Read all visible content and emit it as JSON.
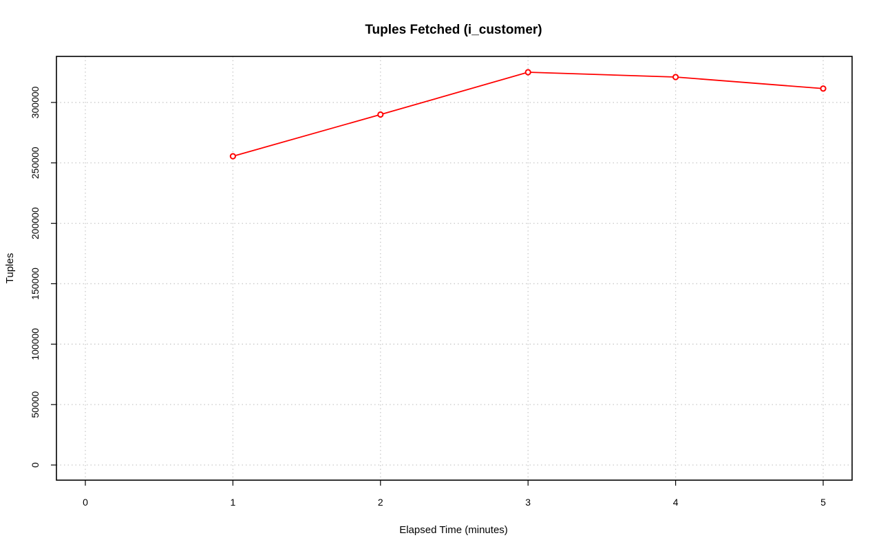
{
  "chart_data": {
    "type": "line",
    "title": "Tuples Fetched (i_customer)",
    "xlabel": "Elapsed Time (minutes)",
    "ylabel": "Tuples",
    "xlim": [
      0,
      5
    ],
    "ylim": [
      0,
      325000
    ],
    "x_ticks": [
      0,
      1,
      2,
      3,
      4,
      5
    ],
    "y_ticks": [
      0,
      50000,
      100000,
      150000,
      200000,
      250000,
      300000
    ],
    "grid": true,
    "series": [
      {
        "color": "#ff0000",
        "x": [
          1,
          2,
          3,
          4,
          5
        ],
        "values": [
          255500,
          290000,
          325000,
          321000,
          311500
        ]
      }
    ]
  }
}
